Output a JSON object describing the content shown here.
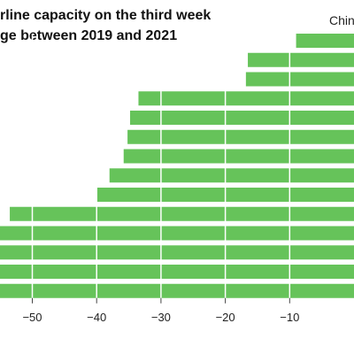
{
  "chart_data": {
    "type": "bar",
    "orientation": "horizontal",
    "title_lines": [
      "rline capacity on the third week",
      "ge between 2019 and 2021"
    ],
    "visible_category_label": "Chin",
    "bar_color": "#66c35a",
    "values": [
      -9,
      -16.5,
      -16.8,
      -33.5,
      -34.8,
      -35.2,
      -35.8,
      -38,
      -40,
      -53.5,
      -55.5,
      -58,
      -58,
      -58
    ],
    "x_ticks": [
      -50,
      -40,
      -30,
      -20,
      -10
    ],
    "x_tick_labels": [
      "−50",
      "−40",
      "−30",
      "−20",
      "−10"
    ],
    "xlim": [
      -58,
      0
    ],
    "grid": true
  }
}
